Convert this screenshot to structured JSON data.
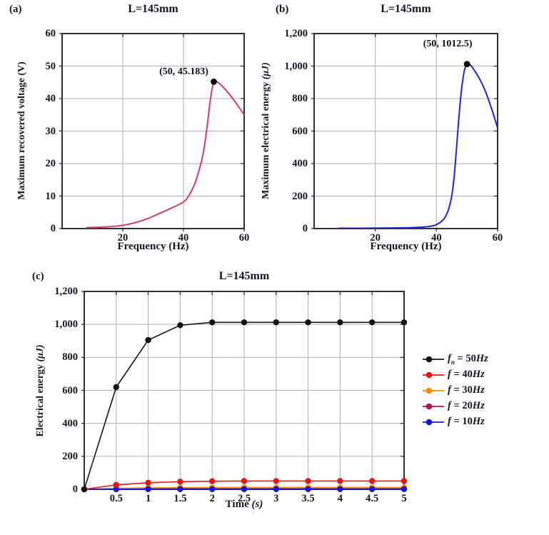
{
  "figure": {
    "background": "#ffffff",
    "text_color": "#15151f",
    "frame_color": "#2e2e2e",
    "grid_color": "#b0b0b0"
  },
  "chart_data": [
    {
      "id": "a",
      "type": "line",
      "panel_label": "(a)",
      "title": "L=145mm",
      "xlabel_main": "Frequency (Hz)",
      "xlabel_unit": "",
      "ylabel_main": "Maximum recovered voltage (V)",
      "ylabel_unit": "",
      "xlim": [
        0,
        60
      ],
      "ylim": [
        0,
        60
      ],
      "xticks": [
        20,
        40,
        60
      ],
      "xtick_labels": [
        "20",
        "40",
        "60"
      ],
      "yticks": [
        0,
        10,
        20,
        30,
        40,
        50,
        60
      ],
      "ytick_labels": [
        "0",
        "10",
        "20",
        "30",
        "40",
        "50",
        "60"
      ],
      "grid": true,
      "legend_position": "none",
      "series": [
        {
          "name": "max-recovered-voltage",
          "color": "#d23b67",
          "smooth": true,
          "marker": false,
          "points": [
            [
              8,
              0.3
            ],
            [
              12,
              0.4
            ],
            [
              16,
              0.6
            ],
            [
              20,
              1.0
            ],
            [
              24,
              1.8
            ],
            [
              28,
              3.0
            ],
            [
              32,
              4.6
            ],
            [
              36,
              6.3
            ],
            [
              40,
              8.2
            ],
            [
              42,
              10.5
            ],
            [
              44,
              14.5
            ],
            [
              46,
              21
            ],
            [
              47,
              26
            ],
            [
              48,
              33
            ],
            [
              49,
              40.5
            ],
            [
              50,
              45.183
            ],
            [
              51,
              45.2
            ],
            [
              52,
              44.5
            ],
            [
              54,
              42.6
            ],
            [
              56,
              40.3
            ],
            [
              58,
              37.7
            ],
            [
              60,
              35
            ]
          ]
        }
      ],
      "peak": {
        "x": 50,
        "y": 45.183,
        "label": "(50, 45.183)"
      }
    },
    {
      "id": "b",
      "type": "line",
      "panel_label": "(b)",
      "title": "L=145mm",
      "xlabel_main": "Frequency (Hz)",
      "xlabel_unit": "",
      "ylabel_main": "Maximum electrical energy ",
      "ylabel_unit": "(μJ)",
      "xlim": [
        0,
        60
      ],
      "ylim": [
        0,
        1200
      ],
      "xticks": [
        20,
        40,
        60
      ],
      "xtick_labels": [
        "20",
        "40",
        "60"
      ],
      "yticks": [
        0,
        200,
        400,
        600,
        800,
        1000,
        1200
      ],
      "ytick_labels": [
        "0",
        "200",
        "400",
        "600",
        "800",
        "1,000",
        "1,200"
      ],
      "grid": true,
      "legend_position": "none",
      "series": [
        {
          "name": "max-electrical-energy",
          "color": "#2222dd",
          "smooth": true,
          "marker": false,
          "points": [
            [
              8,
              2
            ],
            [
              14,
              2
            ],
            [
              20,
              3
            ],
            [
              26,
              4
            ],
            [
              32,
              6
            ],
            [
              36,
              10
            ],
            [
              38,
              14
            ],
            [
              40,
              24
            ],
            [
              42,
              50
            ],
            [
              43,
              75
            ],
            [
              44,
              120
            ],
            [
              45,
              200
            ],
            [
              45.8,
              320
            ],
            [
              46.5,
              480
            ],
            [
              47.2,
              650
            ],
            [
              48,
              820
            ],
            [
              49,
              960
            ],
            [
              50,
              1012.5
            ],
            [
              51,
              1008
            ],
            [
              52,
              985
            ],
            [
              54,
              925
            ],
            [
              56,
              845
            ],
            [
              58,
              740
            ],
            [
              60,
              620
            ]
          ]
        }
      ],
      "peak": {
        "x": 50,
        "y": 1012.5,
        "label": "(50, 1012.5)"
      }
    },
    {
      "id": "c",
      "type": "line",
      "panel_label": "(c)",
      "title": "L=145mm",
      "xlabel_main": "Time ",
      "xlabel_unit": "(s)",
      "ylabel_main": "Electrical energy ",
      "ylabel_unit": "(μJ)",
      "xlim": [
        0,
        5
      ],
      "ylim": [
        0,
        1200
      ],
      "xticks": [
        0.5,
        1,
        1.5,
        2,
        2.5,
        3,
        3.5,
        4,
        4.5,
        5
      ],
      "xtick_labels": [
        "0.5",
        "1",
        "1.5",
        "2",
        "2.5",
        "3",
        "3.5",
        "4",
        "4.5",
        "5"
      ],
      "yticks": [
        0,
        200,
        400,
        600,
        800,
        1000,
        1200
      ],
      "ytick_labels": [
        "0",
        "200",
        "400",
        "600",
        "800",
        "1,000",
        "1,200"
      ],
      "grid": true,
      "legend_position": "right",
      "x": [
        0,
        0.5,
        1,
        1.5,
        2,
        2.5,
        3,
        3.5,
        4,
        4.5,
        5
      ],
      "draw_order": [
        3,
        2,
        4,
        1,
        0
      ],
      "series": [
        {
          "name": "fn-50Hz",
          "color": "#141414",
          "smooth": false,
          "marker": true,
          "values": [
            0,
            620,
            905,
            995,
            1012.5,
            1012.5,
            1012.5,
            1012.5,
            1012.5,
            1012.5,
            1012.5
          ]
        },
        {
          "name": "f-40Hz",
          "color": "#ee1111",
          "smooth": false,
          "marker": true,
          "values": [
            0,
            27,
            40,
            46,
            49,
            50,
            50,
            50,
            50,
            50,
            50
          ]
        },
        {
          "name": "f-30Hz",
          "color": "#ff8a00",
          "smooth": false,
          "marker": true,
          "values": [
            0,
            6,
            9,
            10,
            11,
            11,
            11,
            11,
            11,
            11,
            11
          ]
        },
        {
          "name": "f-20Hz",
          "color": "#a81750",
          "smooth": false,
          "marker": true,
          "values": [
            0,
            2,
            3,
            4,
            4,
            4,
            4,
            4,
            4,
            4,
            4
          ]
        },
        {
          "name": "f-10Hz",
          "color": "#1414e0",
          "smooth": false,
          "marker": true,
          "values": [
            0,
            0.5,
            1,
            1,
            1,
            1,
            1,
            1,
            1,
            1,
            1
          ]
        }
      ],
      "legend": [
        {
          "color": "#141414",
          "var": "f",
          "sub": "n",
          "value": "50",
          "unit": "Hz"
        },
        {
          "color": "#ee1111",
          "var": "f",
          "sub": "",
          "value": "40",
          "unit": "Hz"
        },
        {
          "color": "#ff8a00",
          "var": "f",
          "sub": "",
          "value": "30",
          "unit": "Hz"
        },
        {
          "color": "#a81750",
          "var": "f",
          "sub": "",
          "value": "20",
          "unit": "Hz"
        },
        {
          "color": "#1414e0",
          "var": "f",
          "sub": "",
          "value": "10",
          "unit": "Hz"
        }
      ]
    }
  ]
}
